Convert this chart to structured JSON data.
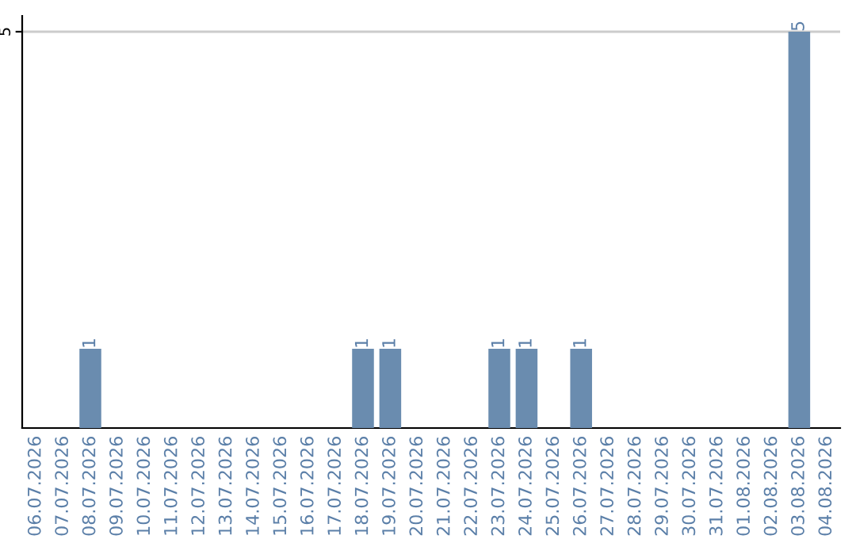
{
  "chart_data": {
    "type": "bar",
    "categories": [
      "06.07.2026",
      "07.07.2026",
      "08.07.2026",
      "09.07.2026",
      "10.07.2026",
      "11.07.2026",
      "12.07.2026",
      "13.07.2026",
      "14.07.2026",
      "15.07.2026",
      "16.07.2026",
      "17.07.2026",
      "18.07.2026",
      "19.07.2026",
      "20.07.2026",
      "21.07.2026",
      "22.07.2026",
      "23.07.2026",
      "24.07.2026",
      "25.07.2026",
      "26.07.2026",
      "27.07.2026",
      "28.07.2026",
      "29.07.2026",
      "30.07.2026",
      "31.07.2026",
      "01.08.2026",
      "02.08.2026",
      "03.08.2026",
      "04.08.2026"
    ],
    "values": [
      0,
      0,
      1,
      0,
      0,
      0,
      0,
      0,
      0,
      0,
      0,
      0,
      1,
      1,
      0,
      0,
      0,
      1,
      1,
      0,
      1,
      0,
      0,
      0,
      0,
      0,
      0,
      0,
      5,
      0
    ],
    "value_labels": [
      null,
      null,
      "1",
      null,
      null,
      null,
      null,
      null,
      null,
      null,
      null,
      null,
      "1",
      "1",
      null,
      null,
      null,
      "1",
      "1",
      null,
      "1",
      null,
      null,
      null,
      null,
      null,
      null,
      null,
      "5",
      null
    ],
    "color": "#6a8caf",
    "ylim": [
      0,
      5.2
    ],
    "yticks": [
      5
    ],
    "grid": "y",
    "legend": false
  }
}
